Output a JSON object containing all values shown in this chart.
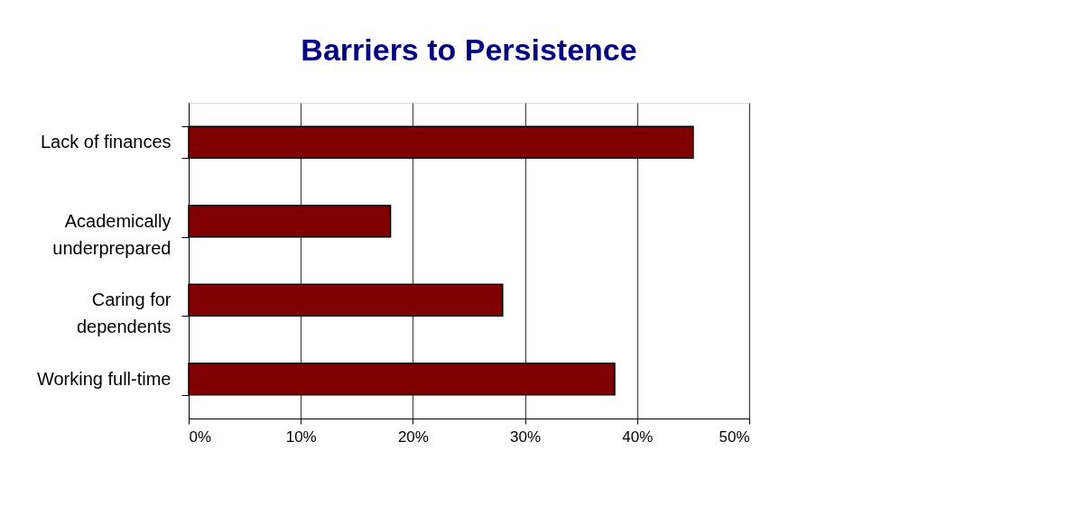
{
  "chart_data": {
    "type": "bar",
    "orientation": "horizontal",
    "title": "Barriers to Persistence",
    "categories": [
      "Lack of finances",
      "Academically underprepared",
      "Caring for dependents",
      "Working full-time"
    ],
    "values": [
      45,
      18,
      28,
      38
    ],
    "color": "#800000",
    "xlim": [
      0,
      50
    ],
    "xticks": [
      {
        "value": 0,
        "label": "0%"
      },
      {
        "value": 10,
        "label": "10%"
      },
      {
        "value": 20,
        "label": "20%"
      },
      {
        "value": 30,
        "label": "30%"
      },
      {
        "value": 40,
        "label": "40%"
      },
      {
        "value": 50,
        "label": "50%"
      }
    ],
    "grid": "x"
  }
}
